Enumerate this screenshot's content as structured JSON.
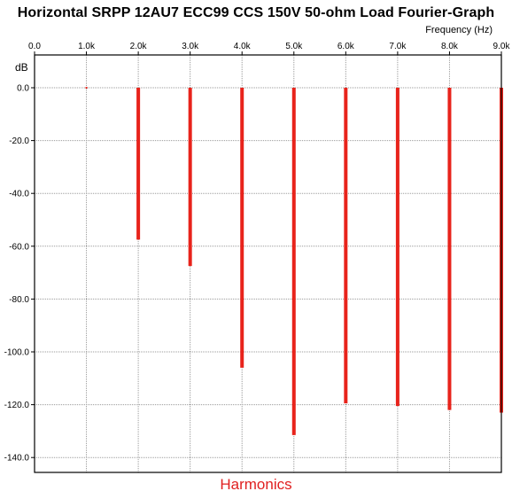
{
  "title": "Horizontal SRPP 12AU7 ECC99 CCS 150V 50-ohm Load Fourier-Graph",
  "bottom_label": "Harmonics",
  "colors": {
    "bar": "#e8231b",
    "grid": "#9a9a9a",
    "axis": "#000000",
    "label": "#e02020"
  },
  "chart_data": {
    "type": "bar",
    "title": "Horizontal SRPP 12AU7 ECC99 CCS 150V 50-ohm Load Fourier-Graph",
    "xlabel": "Frequency  (Hz)",
    "ylabel": "dB",
    "x_ticks": [
      "0.0",
      "1.0k",
      "2.0k",
      "3.0k",
      "4.0k",
      "5.0k",
      "6.0k",
      "7.0k",
      "8.0k",
      "9.0k"
    ],
    "y_ticks": [
      "0.0",
      "-20.0",
      "-40.0",
      "-60.0",
      "-80.0",
      "-100.0",
      "-120.0",
      "-140.0"
    ],
    "xlim": [
      0,
      9000
    ],
    "ylim": [
      -145,
      6
    ],
    "grid": true,
    "x": [
      1000,
      2000,
      3000,
      4000,
      5000,
      6000,
      7000,
      8000,
      9000
    ],
    "values": [
      0.0,
      -57.5,
      -67.5,
      -106.0,
      -131.5,
      -119.5,
      -120.5,
      -122.0,
      -123.0
    ]
  }
}
